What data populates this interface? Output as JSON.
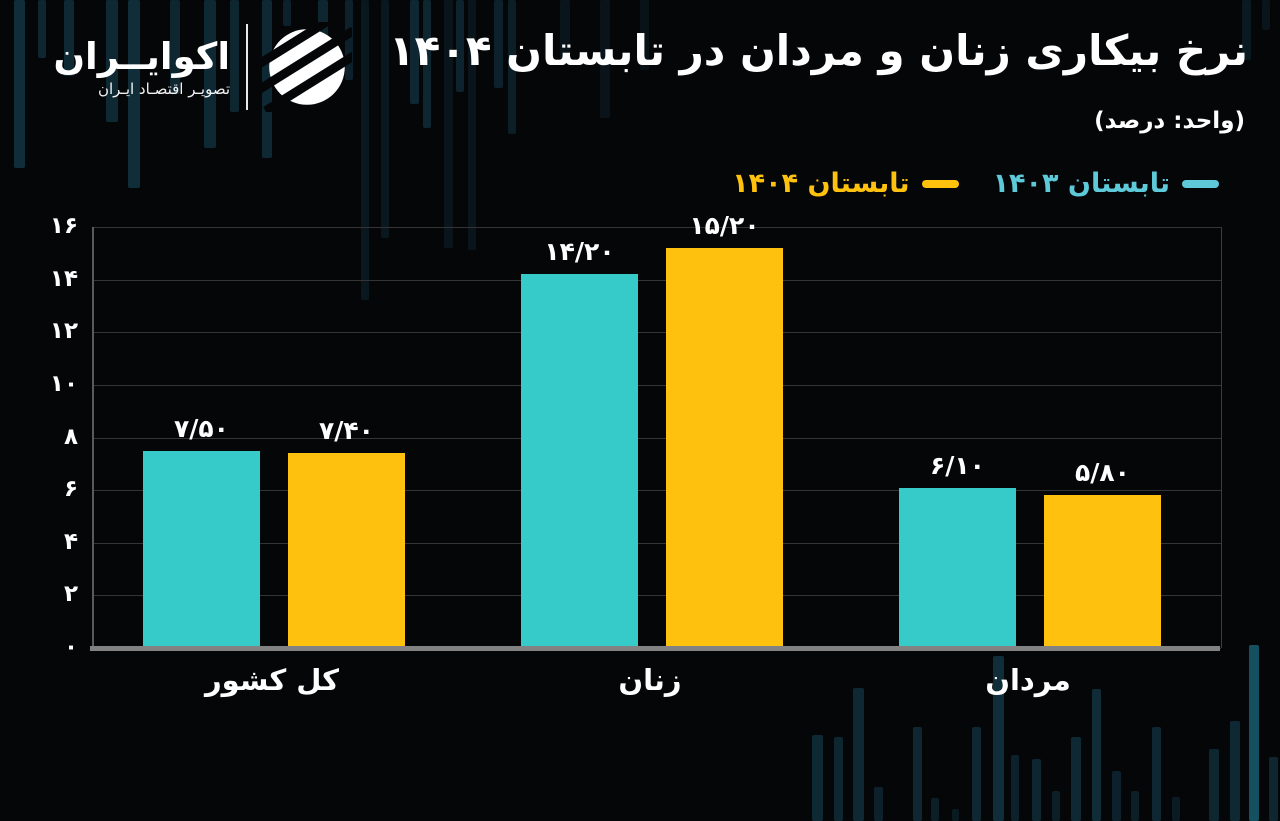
{
  "brand": {
    "name": "اکوایــران",
    "tagline": "تصویـر اقتصـاد ایـران"
  },
  "header": {
    "title": "نرخ بیکاری زنان و مردان در تابستان ۱۴۰۴",
    "subtitle": "(واحد: درصد)"
  },
  "chart_data": {
    "type": "bar",
    "title": "نرخ بیکاری زنان و مردان در تابستان ۱۴۰۴",
    "unit_note": "(واحد: درصد)",
    "categories": [
      "کل کشور",
      "زنان",
      "مردان"
    ],
    "series": [
      {
        "name": "تابستان ۱۴۰۳",
        "color": "#36cbc8",
        "values": [
          7.5,
          14.2,
          6.1
        ],
        "value_labels": [
          "۷/۵۰",
          "۱۴/۲۰",
          "۶/۱۰"
        ]
      },
      {
        "name": "تابستان ۱۴۰۴",
        "color": "#fec10d",
        "values": [
          7.4,
          15.2,
          5.8
        ],
        "value_labels": [
          "۷/۴۰",
          "۱۵/۲۰",
          "۵/۸۰"
        ]
      }
    ],
    "ylim": [
      0,
      16
    ],
    "ytick_step": 2,
    "ytick_labels": [
      "۰",
      "۲",
      "۴",
      "۶",
      "۸",
      "۱۰",
      "۱۲",
      "۱۴",
      "۱۶"
    ],
    "grid": true,
    "legend_position": "top-right",
    "direction": "rtl"
  },
  "colors": {
    "background": "#050608",
    "bar_summer_1403": "#36cbc8",
    "bar_summer_1404": "#fec10d",
    "legend_1403": "#5ecad9",
    "legend_1404": "#fec10d",
    "gridline": "#343434",
    "axis_line": "#828282",
    "text": "#ffffff"
  }
}
